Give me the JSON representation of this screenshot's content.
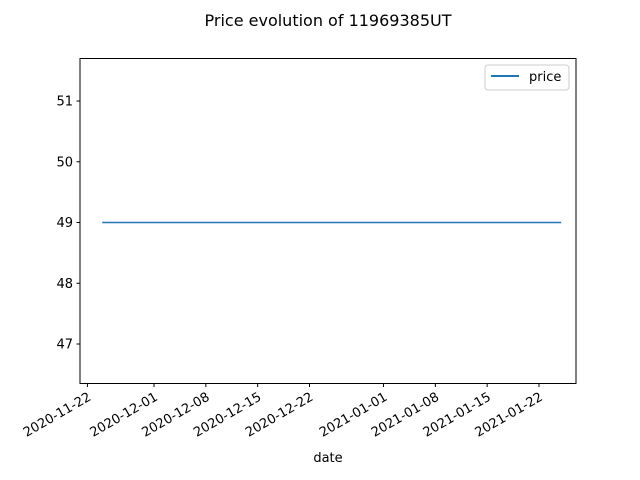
{
  "chart_data": {
    "type": "line",
    "title": "Price evolution of 11969385UT",
    "xlabel": "date",
    "ylabel": "",
    "x_type": "date",
    "xlim": [
      "2020-11-21",
      "2021-01-27"
    ],
    "ylim": [
      46.35,
      51.7
    ],
    "x_ticks": [
      "2020-11-22",
      "2020-12-01",
      "2020-12-08",
      "2020-12-15",
      "2020-12-22",
      "2021-01-01",
      "2021-01-08",
      "2021-01-15",
      "2021-01-22"
    ],
    "y_ticks": [
      47,
      48,
      49,
      50,
      51
    ],
    "grid": false,
    "legend": {
      "position": "top-right"
    },
    "series": [
      {
        "name": "price",
        "color": "#1f77b4",
        "x": [
          "2020-11-24",
          "2021-01-25"
        ],
        "y": [
          49,
          49
        ]
      }
    ]
  }
}
